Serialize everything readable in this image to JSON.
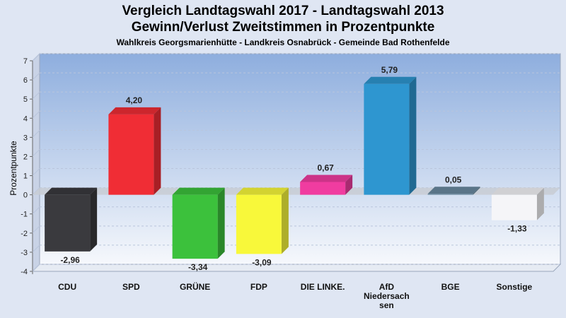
{
  "chart_data": {
    "type": "bar",
    "title_line1": "Vergleich Landtagswahl 2017 - Landtagswahl 2013",
    "title_line2": "Gewinn/Verlust Zweitstimmen in Prozentpunkte",
    "subtitle": "Wahlkreis Georgsmarienhütte - Landkreis Osnabrück - Gemeinde Bad Rothenfelde",
    "ylabel": "Prozentpunkte",
    "xlabel": "",
    "ylim": [
      -4,
      7
    ],
    "yticks": [
      7,
      6,
      5,
      4,
      3,
      2,
      1,
      0,
      -1,
      -2,
      -3,
      -4
    ],
    "grid": true,
    "categories": [
      "CDU",
      "SPD",
      "GRÜNE",
      "FDP",
      "DIE LINKE.",
      "AfD Niedersachsen",
      "BGE",
      "Sonstige"
    ],
    "category_label_lines": [
      [
        "CDU"
      ],
      [
        "SPD"
      ],
      [
        "GRÜNE"
      ],
      [
        "FDP"
      ],
      [
        "DIE LINKE."
      ],
      [
        "AfD",
        "Niedersach",
        "sen"
      ],
      [
        "BGE"
      ],
      [
        "Sonstige"
      ]
    ],
    "values": [
      -2.96,
      4.2,
      -3.34,
      -3.09,
      0.67,
      5.79,
      0.05,
      -1.33
    ],
    "value_labels": [
      "-2,96",
      "4,20",
      "-3,34",
      "-3,09",
      "0,67",
      "5,79",
      "0,05",
      "-1,33"
    ],
    "colors": [
      "#3a3a3e",
      "#f02d35",
      "#3cc13c",
      "#f8f83a",
      "#f03ca0",
      "#2e96d0",
      "#6a8aa0",
      "#f5f5f8"
    ]
  }
}
